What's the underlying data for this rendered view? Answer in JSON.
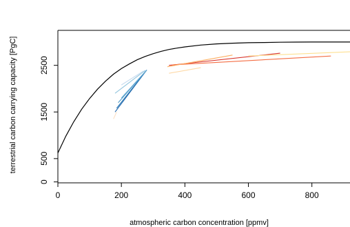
{
  "chart_data": {
    "type": "line",
    "title": "",
    "xlabel": "atmospheric carbon concentration [ppmv]",
    "ylabel": "terrestrial carbon carrying capacity [PgC]",
    "xlim": [
      0,
      920
    ],
    "ylim": [
      -20,
      3250
    ],
    "xticks": [
      0,
      200,
      400,
      600,
      800
    ],
    "xtick_labels": [
      "0",
      "200",
      "400",
      "600",
      "800"
    ],
    "yticks": [
      0,
      500,
      1500,
      2500
    ],
    "ytick_labels": [
      "0",
      "500",
      "1500",
      "2500"
    ],
    "grid": false,
    "legend": "none",
    "curve": {
      "color": "#000000",
      "x": [
        0,
        25,
        50,
        75,
        100,
        125,
        150,
        175,
        200,
        225,
        250,
        275,
        300,
        325,
        350,
        375,
        400,
        450,
        500,
        550,
        600,
        650,
        700,
        750,
        800,
        850,
        900,
        920
      ],
      "y": [
        620,
        980,
        1290,
        1560,
        1790,
        1990,
        2160,
        2310,
        2430,
        2530,
        2620,
        2690,
        2750,
        2800,
        2840,
        2870,
        2895,
        2935,
        2960,
        2975,
        2985,
        2990,
        2995,
        2998,
        3000,
        3000,
        3000,
        3000
      ]
    },
    "series": [
      {
        "color": "#2166ac",
        "x": [
          180,
          280
        ],
        "y": [
          1500,
          2400
        ]
      },
      {
        "color": "#2c7bb6",
        "x": [
          185,
          280
        ],
        "y": [
          1580,
          2400
        ]
      },
      {
        "color": "#4393c3",
        "x": [
          190,
          280
        ],
        "y": [
          1700,
          2400
        ]
      },
      {
        "color": "#6baed6",
        "x": [
          200,
          280
        ],
        "y": [
          1800,
          2400
        ]
      },
      {
        "color": "#92c5de",
        "x": [
          180,
          275
        ],
        "y": [
          1900,
          2390
        ]
      },
      {
        "color": "#c6dbef",
        "x": [
          200,
          270
        ],
        "y": [
          2080,
          2380
        ]
      },
      {
        "color": "#fde0c5",
        "x": [
          175,
          185
        ],
        "y": [
          1350,
          1500
        ]
      },
      {
        "color": "#d73027",
        "x": [
          350,
          700
        ],
        "y": [
          2500,
          2760
        ]
      },
      {
        "color": "#f46d43",
        "x": [
          360,
          860
        ],
        "y": [
          2510,
          2700
        ]
      },
      {
        "color": "#fdae61",
        "x": [
          345,
          550
        ],
        "y": [
          2470,
          2720
        ]
      },
      {
        "color": "#fee090",
        "x": [
          600,
          920
        ],
        "y": [
          2700,
          2790
        ]
      },
      {
        "color": "#fed9a6",
        "x": [
          350,
          450
        ],
        "y": [
          2330,
          2450
        ]
      }
    ]
  }
}
